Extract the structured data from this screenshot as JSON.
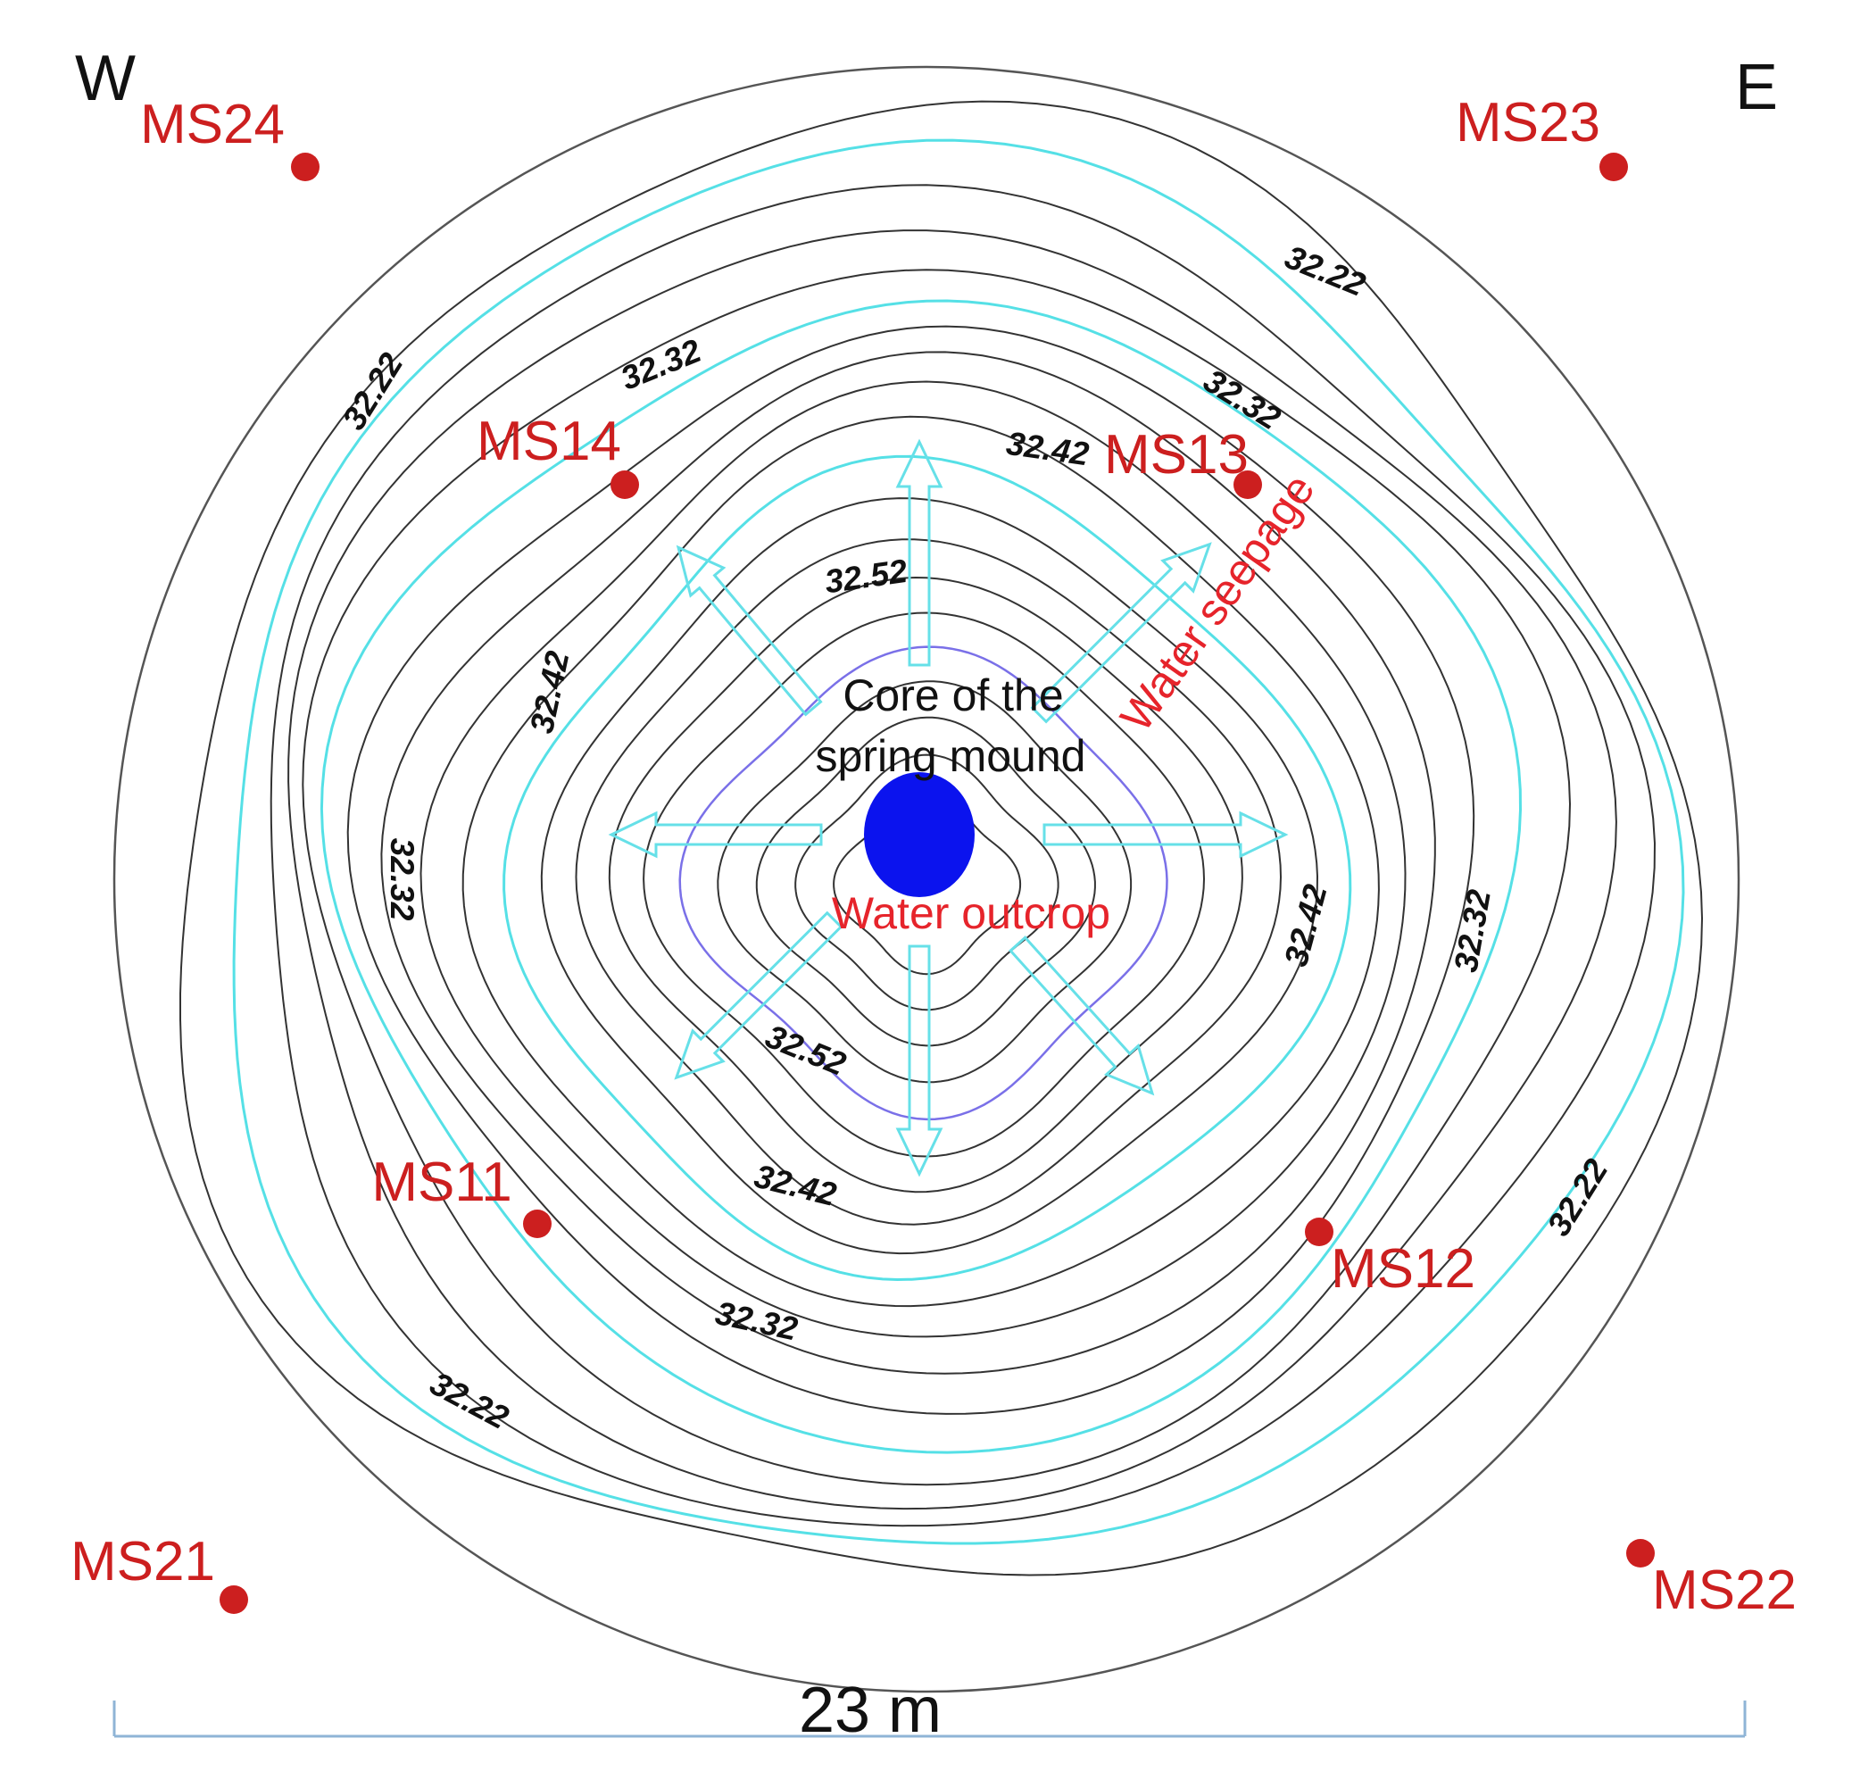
{
  "directions": {
    "west": "W",
    "east": "E"
  },
  "stations": [
    {
      "name": "MS24"
    },
    {
      "name": "MS23"
    },
    {
      "name": "MS14"
    },
    {
      "name": "MS13"
    },
    {
      "name": "MS11"
    },
    {
      "name": "MS12"
    },
    {
      "name": "MS21"
    },
    {
      "name": "MS22"
    }
  ],
  "contour_labels": [
    {
      "text": "32.22"
    },
    {
      "text": "32.22"
    },
    {
      "text": "32.22"
    },
    {
      "text": "32.22"
    },
    {
      "text": "32.32"
    },
    {
      "text": "32.32"
    },
    {
      "text": "32.32"
    },
    {
      "text": "32.32"
    },
    {
      "text": "32.32"
    },
    {
      "text": "32.42"
    },
    {
      "text": "32.42"
    },
    {
      "text": "32.42"
    },
    {
      "text": "32.42"
    },
    {
      "text": "32.52"
    },
    {
      "text": "32.52"
    }
  ],
  "annotations": {
    "core_line1": "Core of the",
    "core_line2": "spring mound",
    "water_outcrop": "Water outcrop",
    "water_seepage": "Water seepage"
  },
  "scale": {
    "label": "23 m"
  },
  "colors": {
    "contour": "#333333",
    "contour_highlight": "#55e0e6",
    "inner_contour": "#7a70e8",
    "station": "#cc1f1f",
    "outcrop": "#0b13ee",
    "arrow": "#66e0e8",
    "annotation_red": "#e6242b",
    "scale_bar": "#8fb4d6"
  }
}
